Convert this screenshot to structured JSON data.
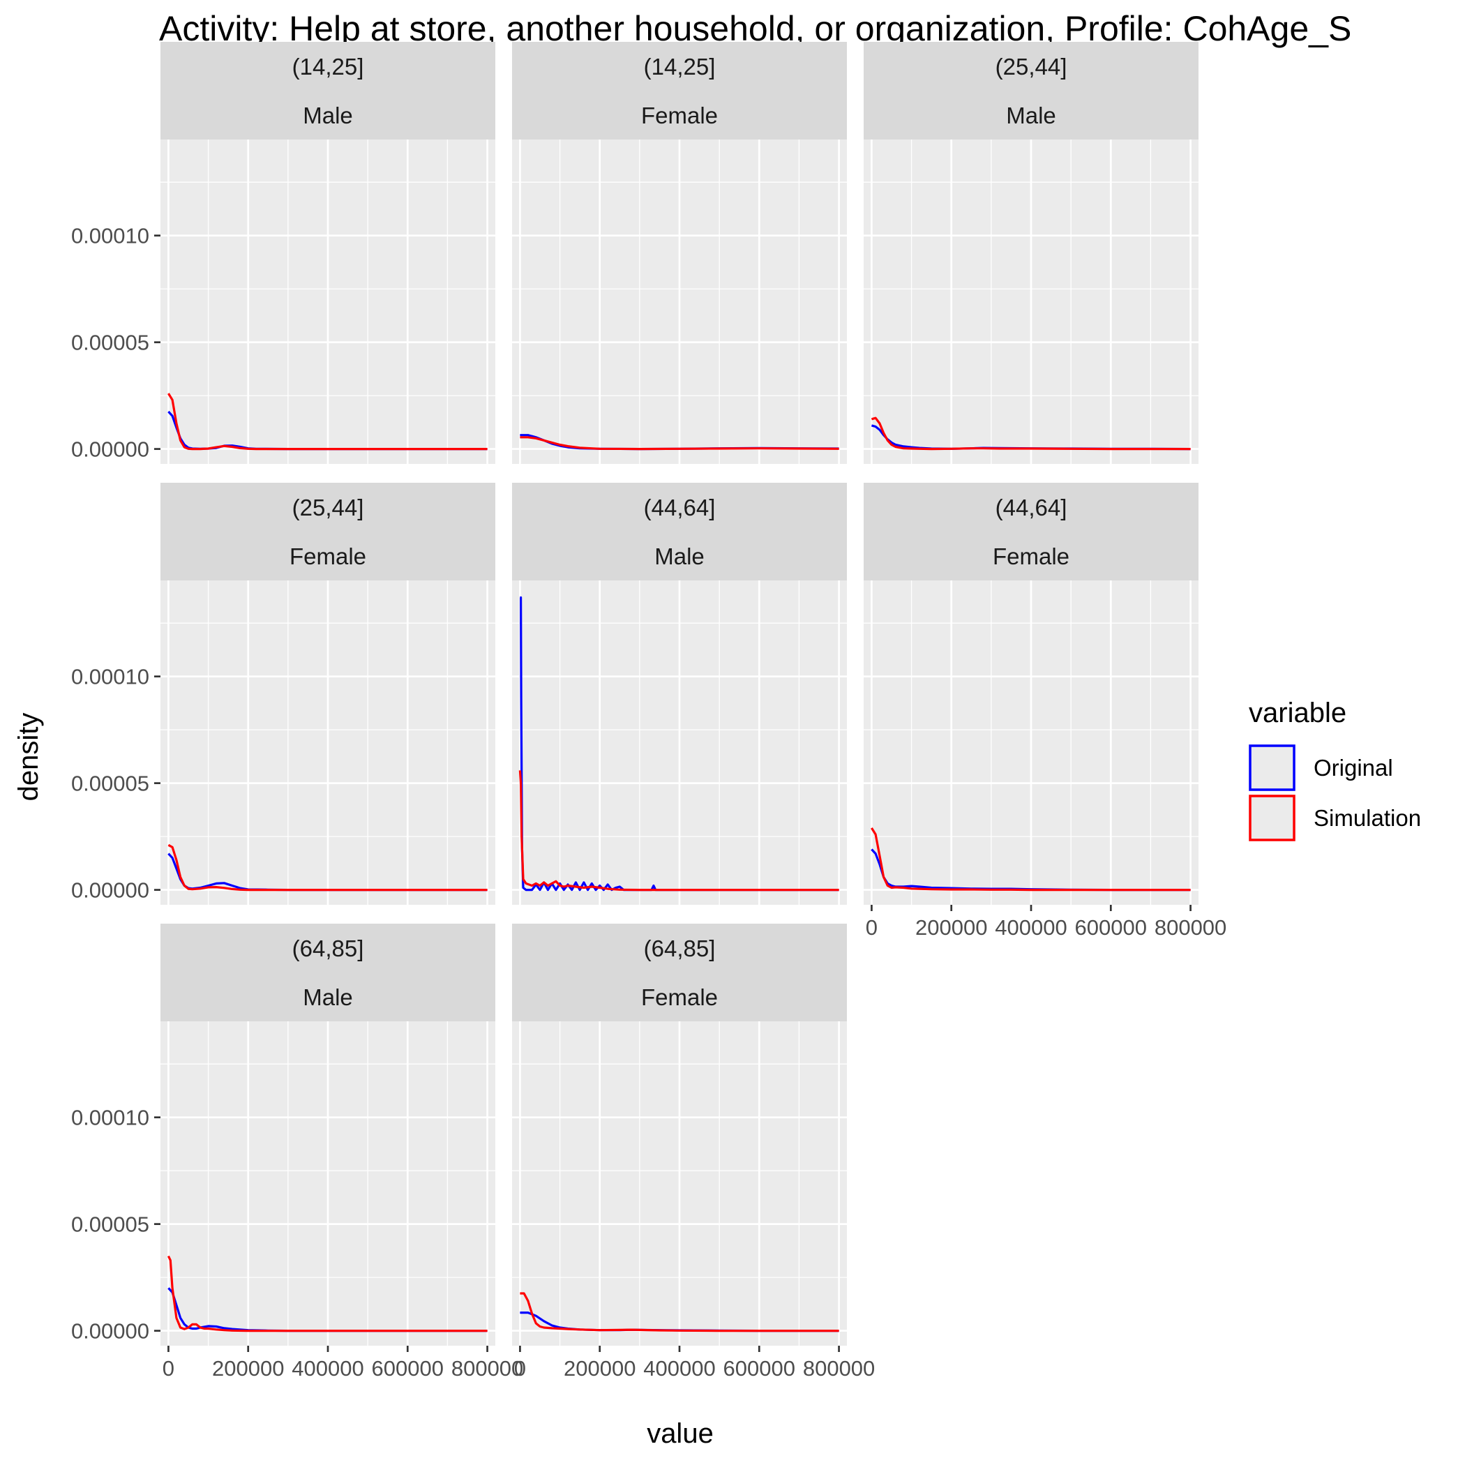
{
  "colors": {
    "panel_bg": "#EBEBEB",
    "strip_bg": "#D9D9D9",
    "grid": "#FFFFFF",
    "tick": "#333333",
    "original": "#0000FF",
    "simulation": "#FF0000"
  },
  "chart_data": {
    "type": "line",
    "title": "Activity: Help at store, another household, or organization, Profile: CohAge_S",
    "xlabel": "value",
    "ylabel": "density",
    "xlim": [
      -20000,
      820000
    ],
    "ylim": [
      -7e-06,
      0.000145
    ],
    "x_ticks": [
      0,
      200000,
      400000,
      600000,
      800000
    ],
    "x_tick_labels": [
      "0",
      "200000",
      "400000",
      "600000",
      "800000"
    ],
    "y_ticks": [
      0,
      5e-05,
      0.0001
    ],
    "y_tick_labels": [
      "0.00000",
      "0.00005",
      "0.00010"
    ],
    "grid": true,
    "legend": {
      "title": "variable",
      "position": "right",
      "items": [
        {
          "label": "Original",
          "color": "#0000FF"
        },
        {
          "label": "Simulation",
          "color": "#FF0000"
        }
      ]
    },
    "panels": [
      {
        "age": "(14,25]",
        "sex": "Male",
        "series": [
          {
            "name": "Original",
            "x": [
              0,
              10000,
              20000,
              30000,
              40000,
              50000,
              60000,
              80000,
              100000,
              120000,
              140000,
              160000,
              180000,
              200000,
              220000,
              300000,
              500000,
              700000,
              800000
            ],
            "y": [
              1.75e-05,
              1.55e-05,
              1e-05,
              5e-06,
              2e-06,
              6e-07,
              2e-07,
              1e-07,
              2e-07,
              5e-07,
              1.5e-06,
              1.6e-06,
              1e-06,
              3e-07,
              1e-07,
              0,
              0,
              0,
              0
            ]
          },
          {
            "name": "Simulation",
            "x": [
              0,
              10000,
              20000,
              30000,
              40000,
              50000,
              60000,
              80000,
              100000,
              120000,
              140000,
              160000,
              180000,
              200000,
              220000,
              300000,
              500000,
              700000,
              800000
            ],
            "y": [
              2.6e-05,
              2.3e-05,
              1.2e-05,
              4e-06,
              8e-07,
              1e-07,
              0,
              0,
              2e-07,
              8e-07,
              1.4e-06,
              1e-06,
              4e-07,
              1e-07,
              0,
              0,
              0,
              0,
              0
            ]
          }
        ]
      },
      {
        "age": "(14,25]",
        "sex": "Female",
        "series": [
          {
            "name": "Original",
            "x": [
              0,
              20000,
              40000,
              60000,
              80000,
              100000,
              120000,
              150000,
              200000,
              300000,
              400000,
              500000,
              600000,
              700000,
              800000
            ],
            "y": [
              6.5e-06,
              6.5e-06,
              5.5e-06,
              4e-06,
              2.5e-06,
              1.5e-06,
              8e-07,
              3e-07,
              1e-07,
              0,
              1e-07,
              3e-07,
              4e-07,
              3e-07,
              2e-07
            ]
          },
          {
            "name": "Simulation",
            "x": [
              0,
              20000,
              40000,
              60000,
              80000,
              100000,
              120000,
              150000,
              200000,
              300000,
              400000,
              500000,
              600000,
              700000,
              800000
            ],
            "y": [
              5.5e-06,
              5.5e-06,
              5e-06,
              4e-06,
              3e-06,
              2e-06,
              1.3e-06,
              6e-07,
              1e-07,
              0,
              1e-07,
              2e-07,
              3e-07,
              2e-07,
              1e-07
            ]
          }
        ]
      },
      {
        "age": "(25,44]",
        "sex": "Male",
        "series": [
          {
            "name": "Original",
            "x": [
              0,
              10000,
              20000,
              30000,
              40000,
              50000,
              60000,
              80000,
              100000,
              120000,
              150000,
              200000,
              250000,
              280000,
              320000,
              400000,
              500000,
              600000,
              700000,
              800000
            ],
            "y": [
              1.1e-05,
              1.05e-05,
              9e-06,
              6.5e-06,
              4.5e-06,
              3e-06,
              2e-06,
              1.2e-06,
              8e-07,
              5e-07,
              2e-07,
              1e-07,
              3e-07,
              5e-07,
              4e-07,
              3e-07,
              2e-07,
              1e-07,
              1e-07,
              0
            ]
          },
          {
            "name": "Simulation",
            "x": [
              0,
              10000,
              20000,
              30000,
              40000,
              50000,
              60000,
              80000,
              100000,
              120000,
              150000,
              200000,
              250000,
              280000,
              320000,
              400000,
              500000,
              600000,
              700000,
              800000
            ],
            "y": [
              1.4e-05,
              1.45e-05,
              1.2e-05,
              7.5e-06,
              4e-06,
              2e-06,
              1e-06,
              3e-07,
              2e-07,
              1e-07,
              0,
              1e-07,
              3e-07,
              3e-07,
              2e-07,
              2e-07,
              1e-07,
              0,
              0,
              0
            ]
          }
        ]
      },
      {
        "age": "(25,44]",
        "sex": "Female",
        "series": [
          {
            "name": "Original",
            "x": [
              0,
              10000,
              20000,
              30000,
              40000,
              50000,
              60000,
              80000,
              100000,
              120000,
              140000,
              160000,
              180000,
              200000,
              250000,
              300000,
              500000,
              800000
            ],
            "y": [
              1.7e-05,
              1.5e-05,
              1e-05,
              5e-06,
              2e-06,
              8e-07,
              6e-07,
              1e-06,
              2e-06,
              3e-06,
              3.2e-06,
              2e-06,
              8e-07,
              2e-07,
              1e-07,
              0,
              0,
              0
            ]
          },
          {
            "name": "Simulation",
            "x": [
              0,
              10000,
              20000,
              30000,
              40000,
              50000,
              60000,
              80000,
              100000,
              120000,
              140000,
              160000,
              180000,
              200000,
              250000,
              300000,
              500000,
              800000
            ],
            "y": [
              2.1e-05,
              2e-05,
              1.4e-05,
              6e-06,
              2e-06,
              5e-07,
              3e-07,
              6e-07,
              1.2e-06,
              1.3e-06,
              9e-07,
              4e-07,
              1e-07,
              0,
              0,
              0,
              0,
              0
            ]
          }
        ]
      },
      {
        "age": "(44,64]",
        "sex": "Male",
        "series": [
          {
            "name": "Original",
            "x": [
              0,
              2000,
              3000,
              5000,
              8000,
              15000,
              30000,
              40000,
              50000,
              60000,
              70000,
              80000,
              90000,
              100000,
              110000,
              120000,
              130000,
              140000,
              150000,
              160000,
              170000,
              180000,
              190000,
              200000,
              210000,
              220000,
              230000,
              240000,
              250000,
              260000,
              300000,
              330000,
              335000,
              340000,
              400000,
              600000,
              800000
            ],
            "y": [
              0.000137,
              0.000137,
              9e-05,
              2e-05,
              1e-06,
              0,
              0,
              2.5e-06,
              0,
              3.5e-06,
              0,
              3e-06,
              0,
              3e-06,
              0,
              2.5e-06,
              0,
              3.5e-06,
              0,
              3.5e-06,
              0,
              3e-06,
              0,
              2e-06,
              0,
              2.5e-06,
              0,
              1e-06,
              1.5e-06,
              0,
              0,
              0,
              2e-06,
              0,
              0,
              0,
              0
            ]
          },
          {
            "name": "Simulation",
            "x": [
              0,
              2000,
              4000,
              8000,
              15000,
              30000,
              40000,
              50000,
              60000,
              70000,
              80000,
              90000,
              100000,
              110000,
              120000,
              140000,
              160000,
              180000,
              200000,
              220000,
              250000,
              300000,
              400000,
              600000,
              800000
            ],
            "y": [
              5.6e-05,
              5e-05,
              2.5e-05,
              5e-06,
              3e-06,
              2e-06,
              3e-06,
              2e-06,
              3.5e-06,
              2e-06,
              3e-06,
              4e-06,
              2e-06,
              1.5e-06,
              2e-06,
              1.5e-06,
              1e-06,
              1.5e-06,
              1e-06,
              5e-07,
              1e-07,
              0,
              0,
              0,
              0
            ]
          }
        ]
      },
      {
        "age": "(44,64]",
        "sex": "Female",
        "series": [
          {
            "name": "Original",
            "x": [
              0,
              10000,
              20000,
              30000,
              40000,
              50000,
              60000,
              80000,
              100000,
              120000,
              150000,
              200000,
              250000,
              300000,
              350000,
              400000,
              500000,
              600000,
              700000,
              800000
            ],
            "y": [
              1.9e-05,
              1.7e-05,
              1.2e-05,
              6e-06,
              3e-06,
              2e-06,
              1.5e-06,
              1.5e-06,
              1.8e-06,
              1.5e-06,
              1e-06,
              8e-07,
              6e-07,
              5e-07,
              5e-07,
              3e-07,
              1e-07,
              0,
              0,
              0
            ]
          },
          {
            "name": "Simulation",
            "x": [
              0,
              10000,
              20000,
              30000,
              40000,
              50000,
              60000,
              80000,
              100000,
              120000,
              150000,
              200000,
              250000,
              300000,
              350000,
              400000,
              500000,
              600000,
              700000,
              800000
            ],
            "y": [
              2.9e-05,
              2.6e-05,
              1.6e-05,
              6e-06,
              2e-06,
              1e-06,
              1.2e-06,
              1e-06,
              6e-07,
              5e-07,
              3e-07,
              2e-07,
              2e-07,
              1e-07,
              1e-07,
              0,
              0,
              0,
              0,
              0
            ]
          }
        ]
      },
      {
        "age": "(64,85]",
        "sex": "Male",
        "series": [
          {
            "name": "Original",
            "x": [
              0,
              10000,
              20000,
              30000,
              40000,
              50000,
              60000,
              70000,
              80000,
              100000,
              120000,
              140000,
              160000,
              200000,
              250000,
              300000,
              400000,
              600000,
              800000
            ],
            "y": [
              2e-05,
              1.8e-05,
              1.2e-05,
              6e-06,
              3e-06,
              1.5e-06,
              1e-06,
              1e-06,
              1.5e-06,
              2.2e-06,
              2e-06,
              1.2e-06,
              8e-07,
              3e-07,
              1e-07,
              0,
              0,
              0,
              0
            ]
          },
          {
            "name": "Simulation",
            "x": [
              0,
              5000,
              10000,
              20000,
              30000,
              40000,
              50000,
              60000,
              70000,
              80000,
              90000,
              100000,
              120000,
              140000,
              160000,
              200000,
              300000,
              600000,
              800000
            ],
            "y": [
              3.5e-05,
              3.3e-05,
              2e-05,
              6e-06,
              1.5e-06,
              8e-07,
              1.5e-06,
              3e-06,
              3e-06,
              1.5e-06,
              1e-06,
              1e-06,
              6e-07,
              3e-07,
              1e-07,
              0,
              0,
              0,
              0
            ]
          }
        ]
      },
      {
        "age": "(64,85]",
        "sex": "Female",
        "series": [
          {
            "name": "Original",
            "x": [
              0,
              20000,
              40000,
              60000,
              80000,
              100000,
              120000,
              150000,
              200000,
              250000,
              280000,
              300000,
              350000,
              400000,
              500000,
              600000,
              800000
            ],
            "y": [
              8.5e-06,
              8.5e-06,
              7e-06,
              4.5e-06,
              2.5e-06,
              1.5e-06,
              1e-06,
              6e-07,
              3e-07,
              3e-07,
              5e-07,
              4e-07,
              3e-07,
              2e-07,
              1e-07,
              0,
              0
            ]
          },
          {
            "name": "Simulation",
            "x": [
              0,
              10000,
              20000,
              30000,
              40000,
              50000,
              60000,
              80000,
              100000,
              120000,
              150000,
              200000,
              250000,
              280000,
              300000,
              350000,
              400000,
              500000,
              800000
            ],
            "y": [
              1.75e-05,
              1.75e-05,
              1.4e-05,
              8e-06,
              3.5e-06,
              2e-06,
              1.5e-06,
              1.2e-06,
              1e-06,
              8e-07,
              6e-07,
              3e-07,
              4e-07,
              5e-07,
              4e-07,
              2e-07,
              1e-07,
              0,
              0
            ]
          }
        ]
      }
    ]
  }
}
